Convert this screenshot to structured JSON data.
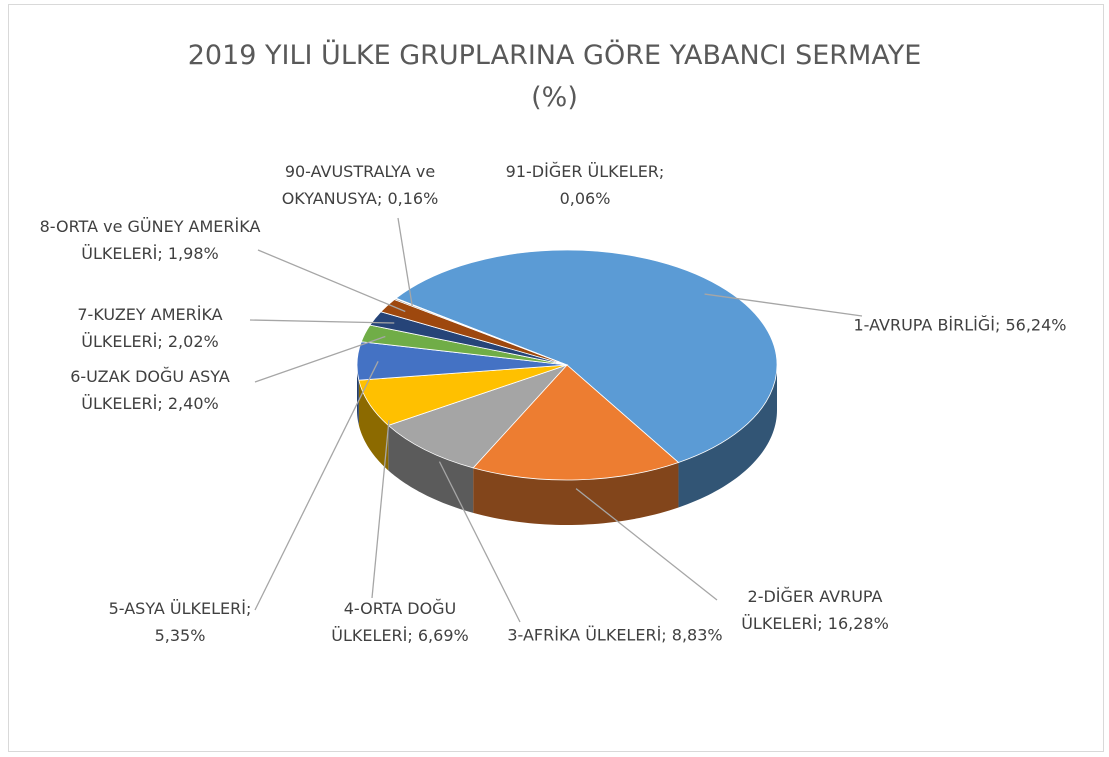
{
  "chart_data": {
    "type": "pie",
    "title": "2019 YILI ÜLKE GRUPLARINA GÖRE YABANCI SERMAYE",
    "subtitle": "(%)",
    "categories": [
      "1-AVRUPA BİRLİĞİ;",
      "2-DİĞER AVRUPA ÜLKELERİ;",
      "3-AFRİKA ÜLKELERİ;",
      "4-ORTA DOĞU ÜLKELERİ;",
      "5-ASYA ÜLKELERİ;",
      "6-UZAK DOĞU ASYA ÜLKELERİ;",
      "7-KUZEY AMERİKA ÜLKELERİ;",
      "8-ORTA ve GÜNEY AMERİKA ÜLKELERİ;",
      "90-AVUSTRALYA ve OKYANUSYA;",
      "91-DİĞER ÜLKELER;"
    ],
    "values": [
      56.24,
      16.28,
      8.83,
      6.69,
      5.35,
      2.4,
      2.02,
      1.98,
      0.16,
      0.06
    ],
    "value_labels": [
      "56,24%",
      "16,28%",
      "8,83%",
      "6,69%",
      "5,35%",
      "2,40%",
      "2,02%",
      "1,98%",
      "0,16%",
      "0,06%"
    ],
    "colors": [
      "#5b9bd5",
      "#ed7d31",
      "#a5a5a5",
      "#ffc000",
      "#4472c4",
      "#70ad47",
      "#264478",
      "#9e480e",
      "#636363",
      "#997300"
    ]
  }
}
